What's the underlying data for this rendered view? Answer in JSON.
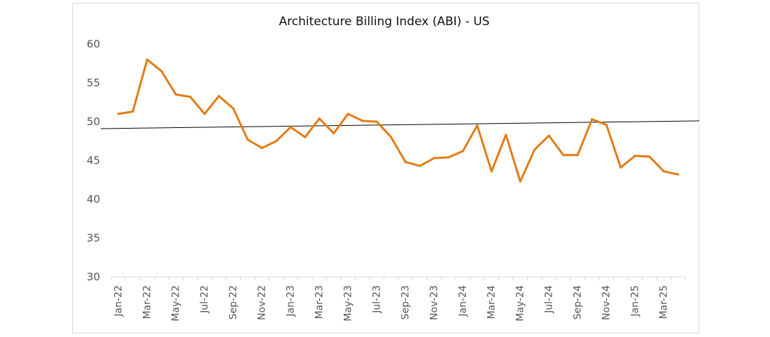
{
  "chart_data": {
    "type": "line",
    "title": "Architecture Billing Index (ABI) - US",
    "xlabel": "",
    "ylabel": "",
    "ylim": [
      30,
      60
    ],
    "yticks": [
      30,
      35,
      40,
      45,
      50,
      55,
      60
    ],
    "x": [
      "Jan-22",
      "Feb-22",
      "Mar-22",
      "Apr-22",
      "May-22",
      "Jun-22",
      "Jul-22",
      "Aug-22",
      "Sep-22",
      "Oct-22",
      "Nov-22",
      "Dec-22",
      "Jan-23",
      "Feb-23",
      "Mar-23",
      "Apr-23",
      "May-23",
      "Jun-23",
      "Jul-23",
      "Aug-23",
      "Sep-23",
      "Oct-23",
      "Nov-23",
      "Dec-23",
      "Jan-24",
      "Feb-24",
      "Mar-24",
      "Apr-24",
      "May-24",
      "Jun-24",
      "Jul-24",
      "Aug-24",
      "Sep-24",
      "Oct-24",
      "Nov-24",
      "Dec-24",
      "Jan-25",
      "Feb-25",
      "Mar-25",
      "Apr-25"
    ],
    "xtick_labels": [
      "Jan-22",
      "Mar-22",
      "May-22",
      "Jul-22",
      "Sep-22",
      "Nov-22",
      "Jan-23",
      "Mar-23",
      "May-23",
      "Jul-23",
      "Sep-23",
      "Nov-23",
      "Jan-24",
      "Mar-24",
      "May-24",
      "Jul-24",
      "Sep-24",
      "Nov-24",
      "Jan-25",
      "Mar-25"
    ],
    "grid": false,
    "legend": "none",
    "series": [
      {
        "name": "ABI",
        "color": "#e37b12",
        "values": [
          51.0,
          51.3,
          58.0,
          56.5,
          53.5,
          53.2,
          51.0,
          53.3,
          51.7,
          47.7,
          46.6,
          47.5,
          49.3,
          48.0,
          50.4,
          48.5,
          51.0,
          50.1,
          50.0,
          48.0,
          44.8,
          44.3,
          45.3,
          45.4,
          46.2,
          49.5,
          43.6,
          48.3,
          42.3,
          46.4,
          48.2,
          45.7,
          45.7,
          50.3,
          49.6,
          44.1,
          45.6,
          45.5,
          43.6,
          43.2
        ]
      },
      {
        "name": "Reference line",
        "color": "#000000",
        "start_value": 49.1,
        "end_value": 50.1
      }
    ]
  }
}
